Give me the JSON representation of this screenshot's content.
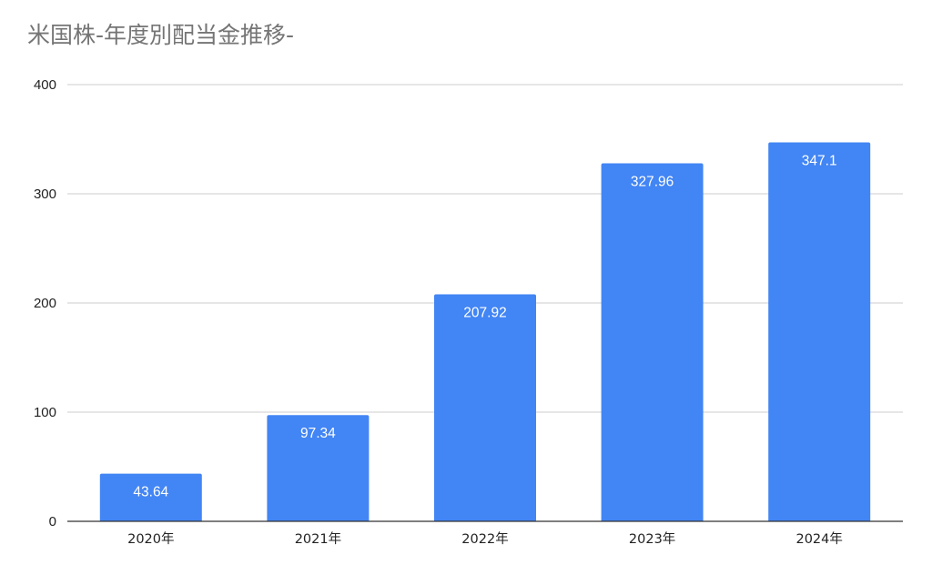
{
  "chart_data": {
    "type": "bar",
    "title": "米国株-年度別配当金推移-",
    "xlabel": "",
    "ylabel": "",
    "categories": [
      "2020年",
      "2021年",
      "2022年",
      "2023年",
      "2024年"
    ],
    "values": [
      43.64,
      97.34,
      207.92,
      327.96,
      347.1
    ],
    "data_labels": [
      "43.64",
      "97.34",
      "207.92",
      "327.96",
      "347.1"
    ],
    "ylim": [
      0,
      400
    ],
    "yticks": [
      "0",
      "100",
      "200",
      "300",
      "400"
    ],
    "grid": true,
    "legend": "none",
    "bar_color": "#4285f4"
  }
}
